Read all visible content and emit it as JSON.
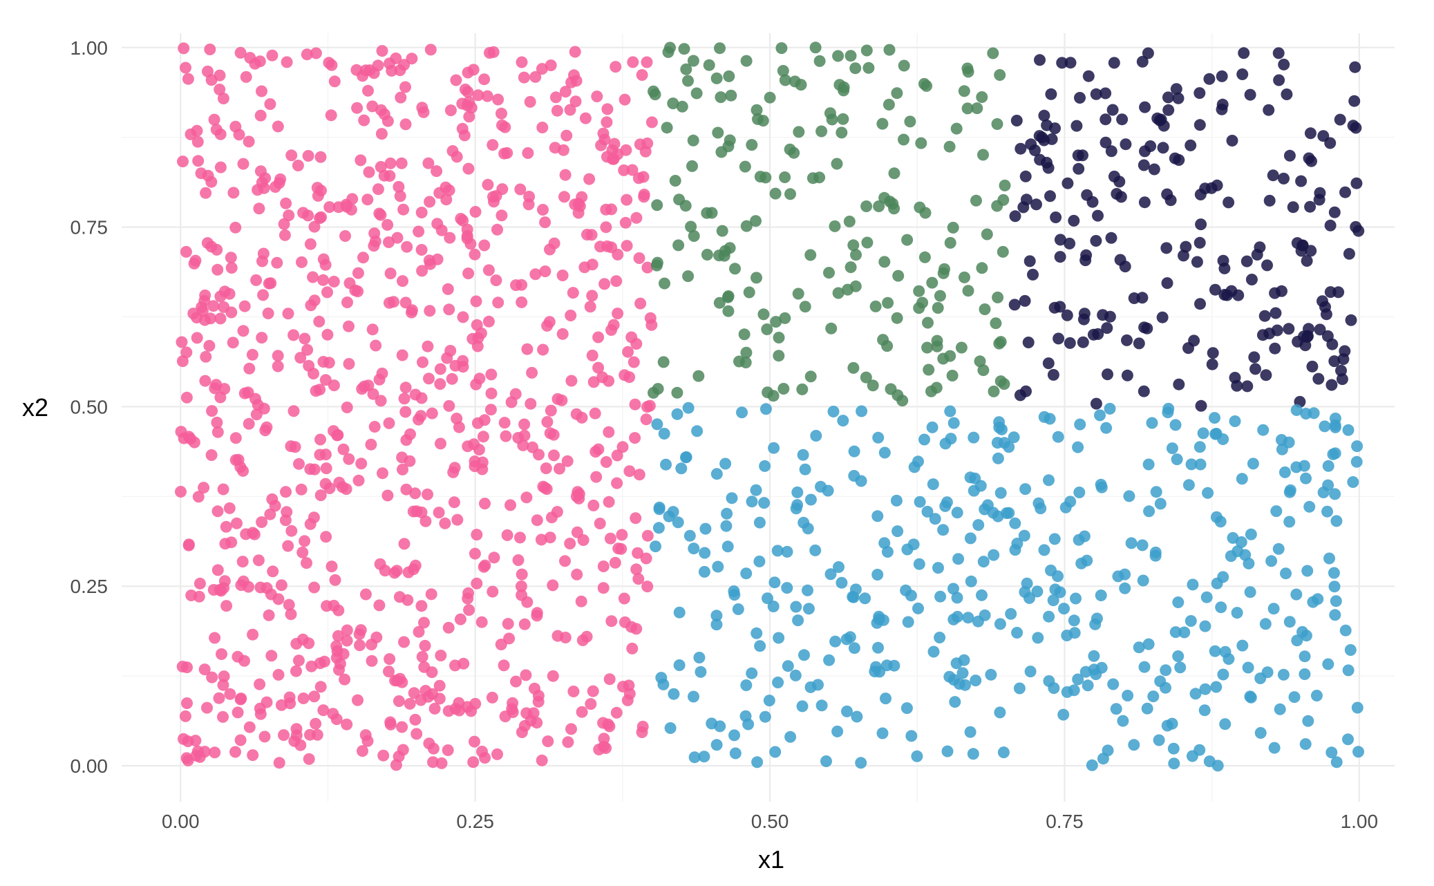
{
  "chart_data": {
    "type": "scatter",
    "title": "",
    "xlabel": "x1",
    "ylabel": "x2",
    "xlim": [
      -0.05,
      1.03
    ],
    "ylim": [
      -0.05,
      1.02
    ],
    "x_ticks": [
      0,
      0.25,
      0.5,
      0.75,
      1
    ],
    "y_ticks": [
      0,
      0.25,
      0.5,
      0.75,
      1
    ],
    "x_tick_labels": [
      "0.00",
      "0.25",
      "0.50",
      "0.75",
      "1.00"
    ],
    "y_tick_labels": [
      "0.00",
      "0.25",
      "0.50",
      "0.75",
      "1.00"
    ],
    "grid": true,
    "legend": "none",
    "point_alpha": 0.85,
    "regions": [
      {
        "color": "#f55e9a",
        "x_range": [
          0,
          0.4
        ],
        "y_range": [
          0,
          1
        ],
        "count": 900
      },
      {
        "color": "#4e865c",
        "x_range": [
          0.4,
          0.7
        ],
        "y_range": [
          0.5,
          1
        ],
        "count": 210
      },
      {
        "color": "#1a1748",
        "x_range": [
          0.7,
          1
        ],
        "y_range": [
          0.5,
          1
        ],
        "count": 230
      },
      {
        "color": "#3d9fcb",
        "x_range": [
          0.4,
          1
        ],
        "y_range": [
          0,
          0.5
        ],
        "count": 450
      }
    ]
  }
}
